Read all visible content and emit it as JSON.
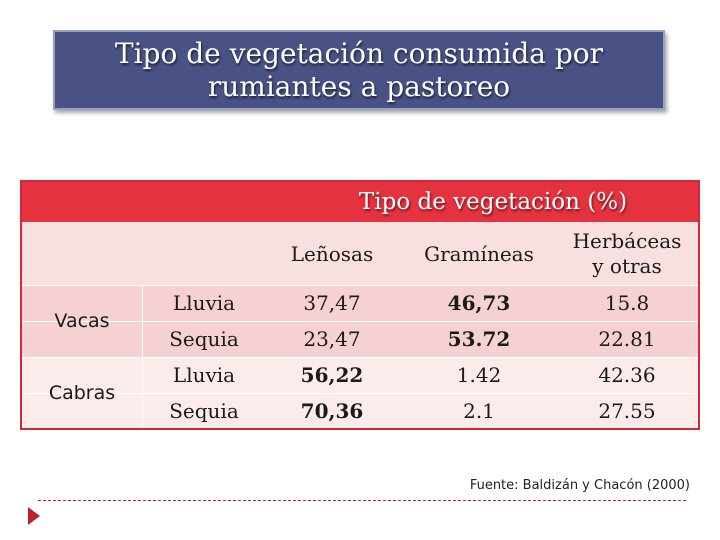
{
  "title": {
    "line1": "Tipo de vegetación consumida por",
    "line2": "rumiantes a pastoreo"
  },
  "table": {
    "group_header": "Tipo de vegetación (%)",
    "columns": {
      "lenosas": "Leñosas",
      "gramineas": "Gramíneas",
      "herbaceas_line1": "Herbáceas",
      "herbaceas_line2": "y otras"
    },
    "groups": [
      {
        "animal": "Vacas",
        "rows": [
          {
            "season": "Lluvia",
            "lenosas": "37,47",
            "gramineas": "46,73",
            "herbaceas": "15.8"
          },
          {
            "season": "Sequia",
            "lenosas": "23,47",
            "gramineas": "53.72",
            "herbaceas": "22.81"
          }
        ]
      },
      {
        "animal": "Cabras",
        "rows": [
          {
            "season": "Lluvia",
            "lenosas": "56,22",
            "gramineas": "1.42",
            "herbaceas": "42.36"
          },
          {
            "season": "Sequia",
            "lenosas": "70,36",
            "gramineas": "2.1",
            "herbaceas": "27.55"
          }
        ]
      }
    ]
  },
  "source": "Fuente: Baldizán y Chacón (2000)",
  "colors": {
    "title_bg": "#4a5285",
    "header_red": "#e5323f",
    "row_pink": "#f5d1d3",
    "row_light": "#fbebeb",
    "accent": "#c21f2c"
  }
}
